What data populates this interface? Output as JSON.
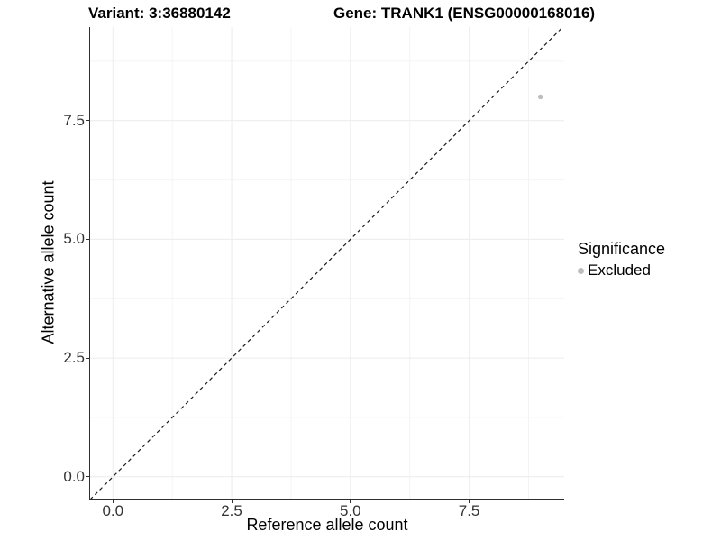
{
  "titles": {
    "variant": "Variant: 3:36880142",
    "gene": "Gene: TRANK1 (ENSG00000168016)"
  },
  "axes": {
    "x_label": "Reference allele count",
    "y_label": "Alternative allele count"
  },
  "legend": {
    "title": "Significance",
    "items": [
      {
        "label": "Excluded",
        "color": "#bdbdbd"
      }
    ]
  },
  "chart_data": {
    "type": "scatter",
    "title": "Variant: 3:36880142    Gene: TRANK1 (ENSG00000168016)",
    "xlabel": "Reference allele count",
    "ylabel": "Alternative allele count",
    "xlim": [
      -0.48,
      9.5
    ],
    "ylim": [
      -0.46,
      9.47
    ],
    "x_ticks": [
      0.0,
      2.5,
      5.0,
      7.5
    ],
    "y_ticks": [
      0.0,
      2.5,
      5.0,
      7.5
    ],
    "x_minor_ticks": [
      1.25,
      3.75,
      6.25,
      8.75
    ],
    "y_minor_ticks": [
      1.25,
      3.75,
      6.25,
      8.75
    ],
    "grid": "on",
    "legend_position": "right",
    "series": [
      {
        "name": "Excluded",
        "color": "#bdbdbd",
        "points": [
          [
            9,
            8
          ]
        ]
      }
    ],
    "reference_line": {
      "type": "identity",
      "slope": 1,
      "intercept": 0,
      "style": "dashed",
      "color": "#1a1a1a"
    }
  },
  "colors": {
    "background": "#ffffff",
    "grid_major": "#ececec",
    "grid_minor": "#f4f4f4",
    "axis_line": "#2f2f2f",
    "tick_text": "#333333",
    "point": "#bdbdbd"
  }
}
